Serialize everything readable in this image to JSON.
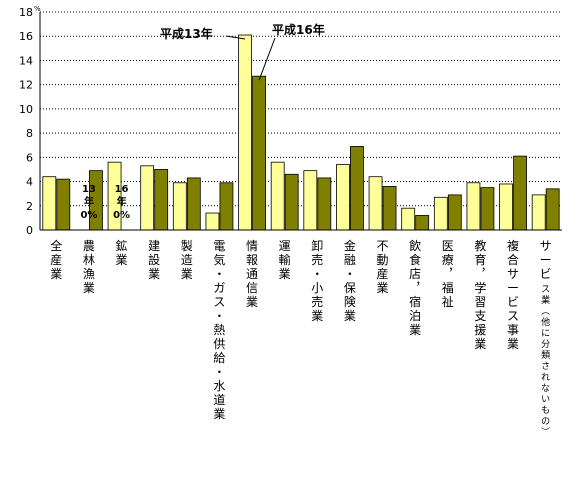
{
  "chart_data": {
    "type": "bar",
    "title": "",
    "xlabel": "",
    "ylabel": "",
    "y_unit": "%",
    "ylim": [
      0,
      18
    ],
    "yticks": [
      "0",
      "2",
      "4",
      "6",
      "8",
      "10",
      "12",
      "14",
      "16",
      "18"
    ],
    "grid": true,
    "categories": [
      "全産業",
      "農林漁業",
      "鉱業",
      "建設業",
      "製造業",
      "電気・ガス・熱供給・水道業",
      "情報通信業",
      "運輸業",
      "卸売・小売業",
      "金融・保険業",
      "不動産業",
      "飲食店，宿泊業",
      "医療，福祉",
      "教育，学習支援業",
      "複合サービス事業",
      "サービス業（他に分類されないもの）"
    ],
    "series": [
      {
        "name": "平成13年",
        "color": "#ffff99",
        "values": [
          4.4,
          0,
          5.6,
          5.3,
          3.9,
          1.4,
          16.1,
          5.6,
          4.9,
          5.4,
          4.4,
          1.8,
          2.7,
          3.9,
          3.8,
          2.9
        ]
      },
      {
        "name": "平成16年",
        "color": "#808000",
        "values": [
          4.2,
          4.9,
          0,
          5.0,
          4.3,
          3.9,
          12.7,
          4.6,
          4.3,
          6.9,
          3.6,
          1.2,
          2.9,
          3.5,
          6.1,
          3.4
        ]
      }
    ],
    "annotations": [
      {
        "category_index": 1,
        "lines": [
          "13",
          "年",
          "0%"
        ]
      },
      {
        "category_index": 2,
        "lines": [
          "16",
          "年",
          "0%"
        ]
      }
    ],
    "legend": "callouts-top"
  },
  "colors": {
    "series1": "#ffff99",
    "series2": "#808000",
    "grid": "#000000",
    "bar_stroke": "#000000"
  }
}
